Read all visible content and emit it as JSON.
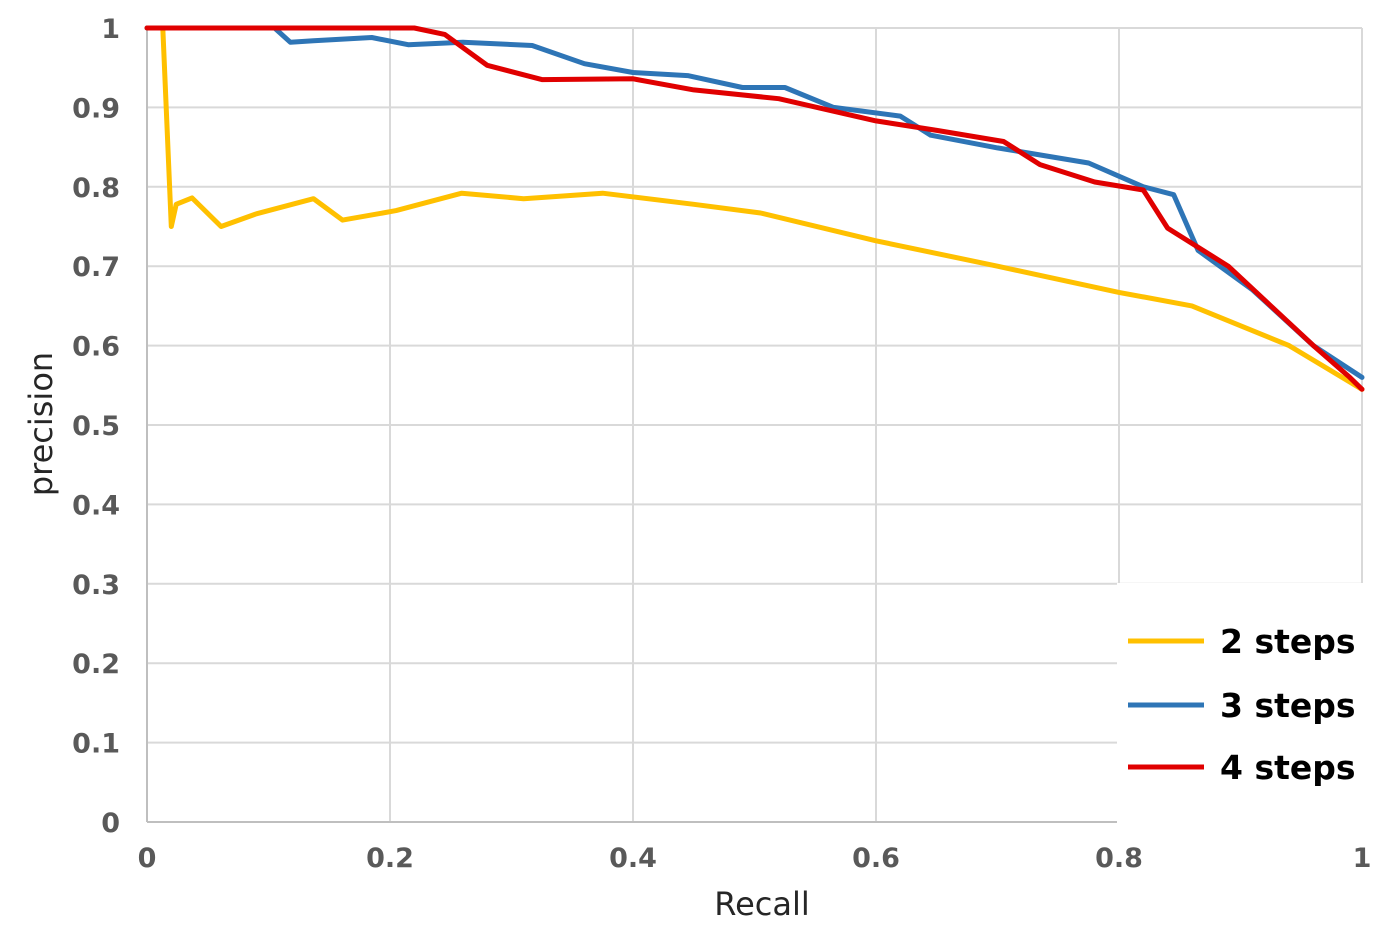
{
  "chart_data": {
    "type": "line",
    "xlabel": "Recall",
    "ylabel": "precision",
    "xlim": [
      0,
      1
    ],
    "ylim": [
      0,
      1
    ],
    "x_ticks": [
      "0",
      "0.2",
      "0.4",
      "0.6",
      "0.8",
      "1"
    ],
    "y_ticks": [
      "0",
      "0.1",
      "0.2",
      "0.3",
      "0.4",
      "0.5",
      "0.6",
      "0.7",
      "0.8",
      "0.9",
      "1"
    ],
    "grid": true,
    "legend_position": "bottom-right",
    "series": [
      {
        "name": "2 steps",
        "color": "#FFC000",
        "points": [
          [
            0.0,
            1.0
          ],
          [
            0.013,
            1.0
          ],
          [
            0.02,
            0.75
          ],
          [
            0.024,
            0.778
          ],
          [
            0.037,
            0.786
          ],
          [
            0.061,
            0.75
          ],
          [
            0.09,
            0.766
          ],
          [
            0.137,
            0.785
          ],
          [
            0.161,
            0.758
          ],
          [
            0.205,
            0.77
          ],
          [
            0.259,
            0.792
          ],
          [
            0.31,
            0.785
          ],
          [
            0.375,
            0.792
          ],
          [
            0.45,
            0.778
          ],
          [
            0.505,
            0.767
          ],
          [
            0.6,
            0.732
          ],
          [
            0.7,
            0.7
          ],
          [
            0.8,
            0.667
          ],
          [
            0.86,
            0.65
          ],
          [
            0.94,
            0.6
          ],
          [
            1.0,
            0.545
          ]
        ]
      },
      {
        "name": "3 steps",
        "color": "#2E75B6",
        "points": [
          [
            0.0,
            1.0
          ],
          [
            0.105,
            1.0
          ],
          [
            0.118,
            0.982
          ],
          [
            0.137,
            0.984
          ],
          [
            0.185,
            0.988
          ],
          [
            0.215,
            0.979
          ],
          [
            0.26,
            0.982
          ],
          [
            0.317,
            0.978
          ],
          [
            0.36,
            0.955
          ],
          [
            0.4,
            0.944
          ],
          [
            0.445,
            0.94
          ],
          [
            0.49,
            0.925
          ],
          [
            0.525,
            0.925
          ],
          [
            0.565,
            0.9
          ],
          [
            0.62,
            0.889
          ],
          [
            0.645,
            0.865
          ],
          [
            0.7,
            0.849
          ],
          [
            0.775,
            0.83
          ],
          [
            0.82,
            0.8
          ],
          [
            0.845,
            0.79
          ],
          [
            0.865,
            0.72
          ],
          [
            0.91,
            0.67
          ],
          [
            0.96,
            0.6
          ],
          [
            1.0,
            0.56
          ]
        ]
      },
      {
        "name": "4 steps",
        "color": "#E00000",
        "points": [
          [
            0.0,
            1.0
          ],
          [
            0.22,
            1.0
          ],
          [
            0.245,
            0.992
          ],
          [
            0.28,
            0.953
          ],
          [
            0.325,
            0.935
          ],
          [
            0.4,
            0.936
          ],
          [
            0.45,
            0.922
          ],
          [
            0.52,
            0.911
          ],
          [
            0.6,
            0.883
          ],
          [
            0.65,
            0.871
          ],
          [
            0.705,
            0.857
          ],
          [
            0.735,
            0.828
          ],
          [
            0.78,
            0.806
          ],
          [
            0.82,
            0.796
          ],
          [
            0.84,
            0.748
          ],
          [
            0.89,
            0.7
          ],
          [
            0.96,
            0.6
          ],
          [
            0.99,
            0.56
          ],
          [
            1.0,
            0.545
          ]
        ]
      }
    ]
  }
}
